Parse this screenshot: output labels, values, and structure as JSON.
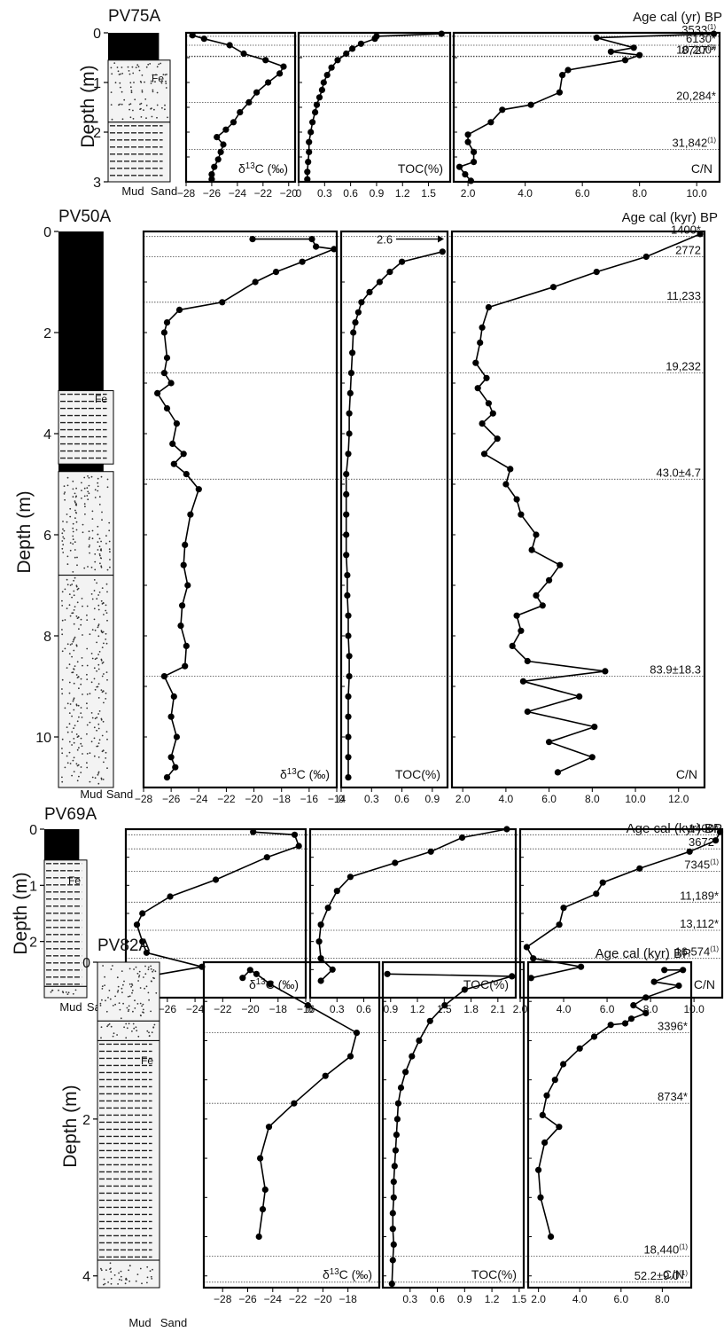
{
  "common": {
    "depth_label": "Depth (m)",
    "lith_mud": "Mud",
    "lith_sand": "Sand",
    "d13c_label": "δ13C (‰)",
    "toc_label": "TOC(%)",
    "cn_label": "C/N",
    "fe_label": "Fe"
  },
  "chart_data": [
    {
      "type": "line",
      "core": "PV75A",
      "age_title": "Age cal (yr) BP",
      "depth_range": [
        0,
        3
      ],
      "depth_ticks": [
        "0",
        "1",
        "2",
        "3"
      ],
      "panels": [
        {
          "variable": "d13C",
          "xlim": [
            -28,
            -19.5
          ],
          "ticks": [
            "-28",
            "-26",
            "-24",
            "-22",
            "-20"
          ],
          "depth": [
            0.05,
            0.12,
            0.25,
            0.42,
            0.55,
            0.68,
            0.82,
            1.0,
            1.2,
            1.4,
            1.6,
            1.8,
            1.95,
            2.1,
            2.25,
            2.4,
            2.55,
            2.7,
            2.85,
            2.95
          ],
          "values": [
            -27.5,
            -26.6,
            -24.6,
            -23.5,
            -21.8,
            -20.4,
            -20.7,
            -21.6,
            -22.5,
            -23.1,
            -23.8,
            -24.3,
            -24.9,
            -25.6,
            -25.1,
            -25.3,
            -25.5,
            -25.8,
            -26.0,
            -26.0
          ]
        },
        {
          "variable": "TOC",
          "xlim": [
            0,
            1.75
          ],
          "ticks": [
            "0",
            "0.3",
            "0.6",
            "0.9",
            "1.2",
            "1.5"
          ],
          "depth": [
            0.02,
            0.07,
            0.12,
            0.22,
            0.32,
            0.42,
            0.55,
            0.7,
            0.85,
            1.0,
            1.15,
            1.3,
            1.45,
            1.6,
            1.8,
            2.0,
            2.2,
            2.4,
            2.6,
            2.8,
            2.95
          ],
          "values": [
            1.65,
            0.9,
            0.88,
            0.72,
            0.62,
            0.55,
            0.45,
            0.38,
            0.33,
            0.29,
            0.27,
            0.24,
            0.21,
            0.19,
            0.16,
            0.14,
            0.12,
            0.12,
            0.11,
            0.1,
            0.1
          ]
        },
        {
          "variable": "C/N",
          "xlim": [
            1.5,
            10.8
          ],
          "ticks": [
            "2.0",
            "4.0",
            "6.0",
            "8.0",
            "10.0"
          ],
          "depth": [
            0.02,
            0.1,
            0.3,
            0.38,
            0.45,
            0.55,
            0.75,
            0.85,
            1.2,
            1.45,
            1.55,
            1.8,
            2.05,
            2.2,
            2.4,
            2.6,
            2.7,
            2.85,
            2.98
          ],
          "values": [
            10.6,
            6.5,
            7.8,
            7.0,
            8.0,
            7.5,
            5.5,
            5.3,
            5.2,
            4.2,
            3.2,
            2.8,
            2.0,
            2.0,
            2.2,
            2.2,
            1.7,
            1.9,
            2.1
          ]
        }
      ],
      "ages": [
        {
          "depth": 0.07,
          "text": "3533",
          "sup": "(1)"
        },
        {
          "depth": 0.25,
          "text": "6130*",
          "sup": ""
        },
        {
          "depth": 0.48,
          "text": "8727",
          "sup": "(1)"
        },
        {
          "depth": 0.47,
          "text": "10,200*",
          "sup": ""
        },
        {
          "depth": 1.4,
          "text": "20,284*",
          "sup": ""
        },
        {
          "depth": 2.35,
          "text": "31,842",
          "sup": "(1)"
        }
      ]
    },
    {
      "type": "line",
      "core": "PV50A",
      "age_title": "Age cal (kyr) BP",
      "depth_range": [
        0,
        11
      ],
      "depth_ticks": [
        "0",
        "2",
        "4",
        "6",
        "8",
        "10"
      ],
      "panels": [
        {
          "variable": "d13C",
          "xlim": [
            -28,
            -14
          ],
          "ticks": [
            "-28",
            "-26",
            "-24",
            "-22",
            "-20",
            "-18",
            "-16",
            "-14"
          ],
          "depth": [
            0.15,
            0.15,
            0.3,
            0.35,
            0.6,
            0.8,
            1.0,
            1.4,
            1.55,
            1.8,
            2.0,
            2.5,
            2.8,
            3.0,
            3.2,
            3.5,
            3.8,
            4.2,
            4.4,
            4.6,
            4.8,
            5.1,
            5.6,
            6.2,
            6.6,
            7.0,
            7.4,
            7.8,
            8.2,
            8.6,
            8.8,
            9.2,
            9.6,
            10.0,
            10.4,
            10.6,
            10.8
          ],
          "values": [
            -20.1,
            -15.8,
            -15.5,
            -14.2,
            -16.5,
            -18.4,
            -19.9,
            -22.3,
            -25.4,
            -26.3,
            -26.5,
            -26.3,
            -26.5,
            -26.0,
            -27.0,
            -26.3,
            -25.6,
            -25.9,
            -25.1,
            -25.8,
            -24.9,
            -24.0,
            -24.6,
            -25.0,
            -25.1,
            -24.8,
            -25.2,
            -25.3,
            -24.9,
            -25.0,
            -26.5,
            -25.8,
            -26.0,
            -25.6,
            -26.0,
            -25.7,
            -26.3
          ]
        },
        {
          "variable": "TOC",
          "xlim": [
            0,
            1.05
          ],
          "ticks": [
            "0",
            "0.3",
            "0.6",
            "0.9"
          ],
          "depth": [
            0.4,
            0.6,
            0.8,
            1.0,
            1.2,
            1.4,
            1.6,
            1.8,
            2.0,
            2.4,
            2.8,
            3.2,
            3.6,
            4.0,
            4.4,
            4.8,
            5.2,
            5.6,
            6.0,
            6.4,
            6.8,
            7.2,
            7.6,
            8.0,
            8.4,
            8.8,
            9.2,
            9.6,
            10.0,
            10.4,
            10.8
          ],
          "values": [
            1.0,
            0.6,
            0.48,
            0.38,
            0.28,
            0.2,
            0.17,
            0.14,
            0.12,
            0.11,
            0.1,
            0.09,
            0.08,
            0.08,
            0.07,
            0.05,
            0.05,
            0.05,
            0.05,
            0.05,
            0.06,
            0.06,
            0.07,
            0.07,
            0.08,
            0.08,
            0.07,
            0.07,
            0.07,
            0.07,
            0.07
          ]
        },
        {
          "variable": "C/N",
          "xlim": [
            1.5,
            13.2
          ],
          "ticks": [
            "2.0",
            "4.0",
            "6.0",
            "8.0",
            "10.0",
            "12.0"
          ],
          "depth": [
            0.05,
            0.5,
            0.8,
            1.1,
            1.5,
            1.9,
            2.2,
            2.6,
            2.9,
            3.1,
            3.4,
            3.6,
            3.8,
            4.1,
            4.4,
            4.7,
            5.0,
            5.3,
            5.6,
            6.0,
            6.3,
            6.6,
            6.9,
            7.2,
            7.4,
            7.6,
            7.9,
            8.2,
            8.5,
            8.7,
            8.9,
            9.2,
            9.5,
            9.8,
            10.1,
            10.4,
            10.7
          ],
          "values": [
            13.0,
            10.5,
            8.2,
            6.2,
            3.2,
            2.9,
            2.8,
            2.6,
            3.1,
            2.7,
            3.2,
            3.4,
            2.9,
            3.6,
            3.0,
            4.2,
            4.0,
            4.5,
            4.7,
            5.4,
            5.2,
            6.5,
            6.0,
            5.4,
            5.7,
            4.5,
            4.7,
            4.3,
            5.0,
            8.6,
            4.8,
            7.4,
            5.0,
            8.1,
            6.0,
            8.0,
            6.4
          ]
        }
      ],
      "ages": [
        {
          "depth": 0.1,
          "text": "1400*",
          "sup": ""
        },
        {
          "depth": 0.5,
          "text": "2772",
          "sup": ""
        },
        {
          "depth": 1.4,
          "text": "11,233",
          "sup": ""
        },
        {
          "depth": 2.8,
          "text": "19,232",
          "sup": ""
        },
        {
          "depth": 4.9,
          "text": "43.0±4.7",
          "sup": ""
        },
        {
          "depth": 8.8,
          "text": "83.9±18.3",
          "sup": ""
        }
      ],
      "toc_annotation": "2.6"
    },
    {
      "type": "line",
      "core": "PV69A",
      "age_title": "Age cal (kyr) BP",
      "depth_range": [
        0,
        3
      ],
      "depth_ticks": [
        "0",
        "1",
        "2"
      ],
      "panels": [
        {
          "variable": "d13C",
          "xlim": [
            -29,
            -16
          ],
          "ticks": [
            "-28",
            "-26",
            "-24",
            "-22",
            "-20",
            "-18",
            "-16"
          ],
          "depth": [
            0.05,
            0.1,
            0.3,
            0.5,
            0.9,
            1.2,
            1.5,
            1.7,
            2.0,
            2.2,
            2.45,
            2.6
          ],
          "values": [
            -19.8,
            -16.8,
            -16.5,
            -18.8,
            -22.5,
            -25.8,
            -27.8,
            -28.2,
            -27.8,
            -27.5,
            -23.5,
            -27.0
          ]
        },
        {
          "variable": "TOC",
          "xlim": [
            0,
            2.3
          ],
          "ticks": [
            "0",
            "0.3",
            "0.6",
            "0.9",
            "1.2",
            "1.5",
            "1.8",
            "2.1"
          ],
          "depth": [
            0.0,
            0.15,
            0.4,
            0.6,
            0.85,
            1.1,
            1.4,
            1.7,
            2.0,
            2.3,
            2.5,
            2.7
          ],
          "values": [
            2.2,
            1.7,
            1.35,
            0.95,
            0.45,
            0.3,
            0.2,
            0.12,
            0.1,
            0.12,
            0.25,
            0.12
          ]
        },
        {
          "variable": "C/N",
          "xlim": [
            2.0,
            11.3
          ],
          "ticks": [
            "2.0",
            "4.0",
            "6.0",
            "8.0",
            "10.0"
          ],
          "depth": [
            0.05,
            0.2,
            0.4,
            0.7,
            0.95,
            1.15,
            1.4,
            1.7,
            2.1,
            2.3,
            2.45,
            2.65
          ],
          "values": [
            11.2,
            11.0,
            9.8,
            7.5,
            5.8,
            5.5,
            4.0,
            3.8,
            2.3,
            2.6,
            4.8,
            2.5
          ]
        }
      ],
      "ages": [
        {
          "depth": 0.1,
          "text": "1400*",
          "sup": ""
        },
        {
          "depth": 0.35,
          "text": "3672*",
          "sup": ""
        },
        {
          "depth": 0.75,
          "text": "7345",
          "sup": "(1)"
        },
        {
          "depth": 1.3,
          "text": "11,189*",
          "sup": ""
        },
        {
          "depth": 1.8,
          "text": "13,112*",
          "sup": ""
        },
        {
          "depth": 2.3,
          "text": "16,574",
          "sup": "(1)"
        }
      ]
    },
    {
      "type": "line",
      "core": "PV82A",
      "age_title": "Age cal (kyr) BP",
      "depth_range": [
        0,
        4.15
      ],
      "depth_ticks": [
        "0",
        "2",
        "4"
      ],
      "panels": [
        {
          "variable": "d13C",
          "xlim": [
            -29.5,
            -15.5
          ],
          "ticks": [
            "-28",
            "-26",
            "-24",
            "-22",
            "-20",
            "-18"
          ],
          "depth": [
            0.2,
            0.1,
            0.15,
            0.28,
            0.55,
            0.9,
            1.2,
            1.45,
            1.8,
            2.1,
            2.5,
            2.9,
            3.15,
            3.5
          ],
          "values": [
            -26.4,
            -25.8,
            -25.3,
            -24.2,
            -21.2,
            -17.3,
            -17.8,
            -19.8,
            -22.3,
            -24.3,
            -25.0,
            -24.6,
            -24.8,
            -25.1
          ]
        },
        {
          "variable": "TOC",
          "xlim": [
            0,
            1.55
          ],
          "ticks": [
            "0.3",
            "0.6",
            "0.9",
            "1.2",
            "1.5"
          ],
          "depth": [
            0.15,
            0.18,
            0.35,
            0.55,
            0.75,
            1.0,
            1.2,
            1.4,
            1.6,
            1.8,
            2.0,
            2.2,
            2.4,
            2.6,
            2.8,
            3.0,
            3.2,
            3.4,
            3.6,
            3.8,
            4.1
          ],
          "values": [
            0.05,
            1.42,
            0.9,
            0.68,
            0.52,
            0.4,
            0.32,
            0.25,
            0.2,
            0.17,
            0.16,
            0.15,
            0.14,
            0.13,
            0.12,
            0.12,
            0.11,
            0.11,
            0.12,
            0.11,
            0.1
          ]
        },
        {
          "variable": "C/N",
          "xlim": [
            1.5,
            9.4
          ],
          "ticks": [
            "2.0",
            "4.0",
            "6.0",
            "8.0"
          ],
          "depth": [
            0.1,
            0.1,
            0.25,
            0.3,
            0.45,
            0.55,
            0.65,
            0.72,
            0.78,
            0.8,
            0.95,
            1.1,
            1.3,
            1.5,
            1.7,
            1.95,
            2.1,
            2.3,
            2.65,
            3.0,
            3.5
          ],
          "values": [
            8.1,
            9.0,
            7.6,
            8.8,
            7.2,
            6.6,
            7.2,
            6.5,
            6.2,
            5.5,
            4.7,
            4.0,
            3.2,
            2.8,
            2.4,
            2.2,
            3.0,
            2.3,
            2.0,
            2.1,
            2.6
          ]
        }
      ],
      "ages": [
        {
          "depth": 0.9,
          "text": "3396*",
          "sup": ""
        },
        {
          "depth": 1.8,
          "text": "8734*",
          "sup": ""
        },
        {
          "depth": 3.75,
          "text": "18,440",
          "sup": "(1)"
        },
        {
          "depth": 4.08,
          "text": "52.2±9.0",
          "sup": "(1)"
        }
      ]
    }
  ]
}
